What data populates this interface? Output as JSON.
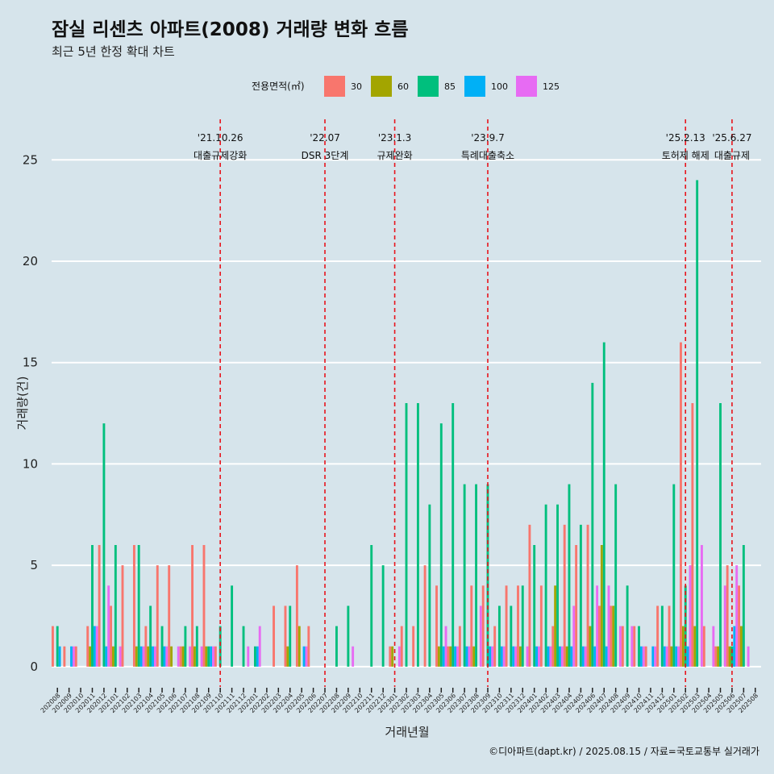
{
  "title": "잠실 리센츠 아파트(2008) 거래량 변화 흐름",
  "subtitle": "최근 5년 한정 확대 차트",
  "caption": "©디아파트(dapt.kr) / 2025.08.15 / 자료=국토교통부 실거래가",
  "chart_data": {
    "type": "bar",
    "xlabel": "거래년월",
    "ylabel": "거래량(건)",
    "ylim": [
      -1,
      27
    ],
    "yticks": [
      0,
      5,
      10,
      15,
      20,
      25
    ],
    "legend_title": "전용면적(㎡)",
    "legend_position": "top",
    "grid": "horizontal",
    "categories": [
      "202008",
      "202009",
      "202010",
      "202011",
      "202012",
      "202101",
      "202102",
      "202103",
      "202104",
      "202105",
      "202106",
      "202107",
      "202108",
      "202109",
      "202110",
      "202111",
      "202112",
      "202201",
      "202202",
      "202203",
      "202204",
      "202205",
      "202206",
      "202207",
      "202208",
      "202209",
      "202210",
      "202211",
      "202212",
      "202301",
      "202302",
      "202303",
      "202304",
      "202305",
      "202306",
      "202307",
      "202308",
      "202309",
      "202310",
      "202311",
      "202312",
      "202401",
      "202402",
      "202403",
      "202404",
      "202405",
      "202406",
      "202407",
      "202408",
      "202409",
      "202410",
      "202411",
      "202412",
      "202501",
      "202502",
      "202503",
      "202504",
      "202505",
      "202506",
      "202507",
      "202508"
    ],
    "series": [
      {
        "name": "30",
        "color": "#f8766d",
        "values": [
          2,
          1,
          1,
          2,
          6,
          3,
          5,
          6,
          2,
          5,
          5,
          1,
          6,
          6,
          1,
          0,
          0,
          0,
          0,
          3,
          3,
          5,
          2,
          0,
          0,
          0,
          0,
          0,
          0,
          1,
          2,
          2,
          5,
          4,
          1,
          2,
          4,
          4,
          2,
          4,
          4,
          7,
          4,
          2,
          7,
          6,
          7,
          3,
          3,
          2,
          2,
          1,
          3,
          3,
          16,
          13,
          2,
          1,
          5,
          4,
          0
        ]
      },
      {
        "name": "60",
        "color": "#a3a500",
        "values": [
          0,
          0,
          0,
          1,
          0,
          1,
          0,
          1,
          1,
          0,
          1,
          1,
          1,
          1,
          0,
          0,
          0,
          0,
          0,
          0,
          1,
          2,
          0,
          0,
          0,
          0,
          0,
          0,
          0,
          1,
          0,
          0,
          0,
          1,
          1,
          0,
          1,
          0,
          0,
          0,
          1,
          0,
          0,
          4,
          1,
          0,
          2,
          6,
          3,
          0,
          0,
          0,
          0,
          1,
          2,
          2,
          0,
          1,
          1,
          2,
          0
        ]
      },
      {
        "name": "85",
        "color": "#00bf7d",
        "values": [
          2,
          0,
          0,
          6,
          12,
          6,
          0,
          6,
          3,
          2,
          0,
          2,
          2,
          1,
          2,
          4,
          2,
          1,
          0,
          0,
          3,
          0,
          0,
          0,
          2,
          3,
          0,
          6,
          5,
          0,
          13,
          13,
          8,
          12,
          13,
          9,
          9,
          9,
          3,
          3,
          4,
          6,
          8,
          8,
          9,
          7,
          14,
          16,
          9,
          4,
          2,
          0,
          3,
          9,
          4,
          24,
          0,
          13,
          1,
          6,
          0
        ]
      },
      {
        "name": "100",
        "color": "#00b0f6",
        "values": [
          1,
          1,
          0,
          2,
          1,
          0,
          0,
          1,
          1,
          1,
          0,
          0,
          0,
          1,
          0,
          0,
          0,
          1,
          0,
          0,
          0,
          1,
          0,
          0,
          0,
          0,
          0,
          0,
          0,
          0,
          0,
          0,
          0,
          1,
          1,
          1,
          0,
          1,
          1,
          1,
          0,
          1,
          1,
          1,
          1,
          1,
          1,
          1,
          0,
          0,
          1,
          1,
          1,
          1,
          1,
          0,
          0,
          0,
          2,
          0,
          0
        ]
      },
      {
        "name": "125",
        "color": "#e76bf3",
        "values": [
          0,
          1,
          0,
          2,
          4,
          1,
          0,
          1,
          1,
          1,
          1,
          1,
          1,
          1,
          0,
          0,
          1,
          2,
          0,
          0,
          0,
          1,
          0,
          0,
          0,
          1,
          0,
          0,
          0,
          1,
          0,
          0,
          0,
          2,
          1,
          1,
          3,
          1,
          1,
          1,
          1,
          1,
          1,
          1,
          3,
          1,
          4,
          4,
          2,
          2,
          1,
          1,
          1,
          1,
          5,
          6,
          2,
          4,
          5,
          1,
          0
        ]
      }
    ],
    "events": [
      {
        "month": "202110",
        "date": "'21.10.26",
        "label": "대출규제강화"
      },
      {
        "month": "202207",
        "date": "'22.07",
        "label": "DSR 3단계"
      },
      {
        "month": "202301",
        "date": "'23.1.3",
        "label": "규제완화"
      },
      {
        "month": "202309",
        "date": "'23.9.7",
        "label": "특례대출축소"
      },
      {
        "month": "202502",
        "date": "'25.2.13",
        "label": "토허제 해제"
      },
      {
        "month": "202506",
        "date": "'25.6.27",
        "label": "대출규제"
      }
    ]
  }
}
